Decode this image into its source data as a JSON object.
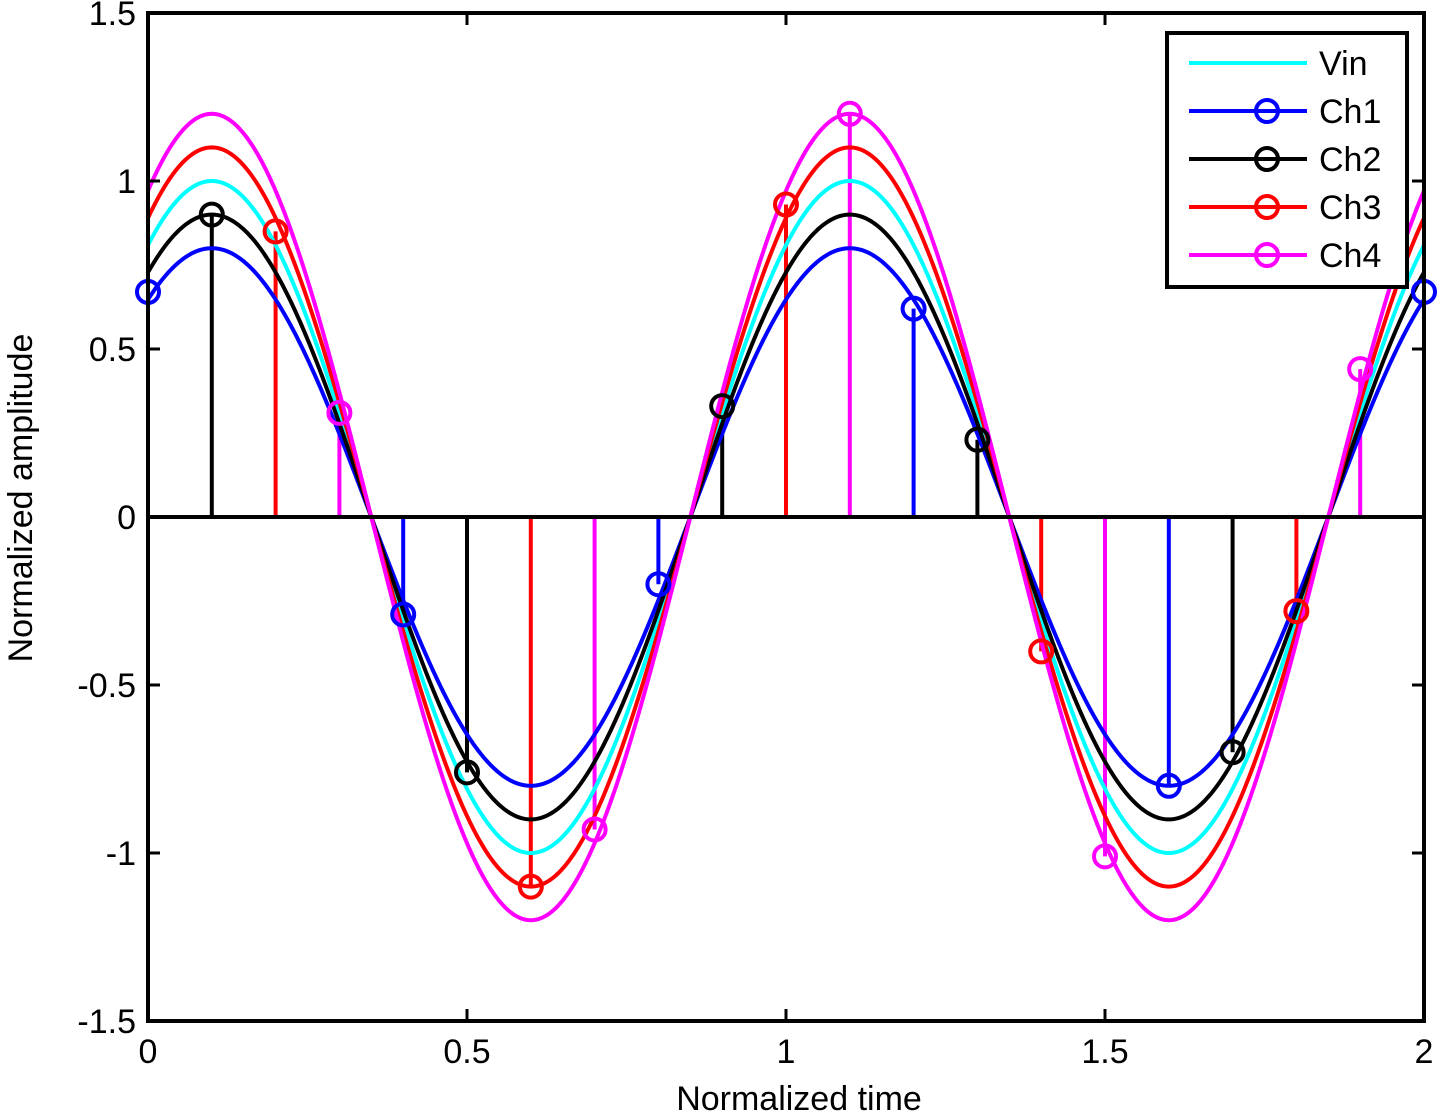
{
  "chart_data": {
    "type": "line",
    "xlabel": "Normalized time",
    "ylabel": "Normalized amplitude",
    "xlim": [
      0,
      2
    ],
    "ylim": [
      -1.5,
      1.5
    ],
    "x_ticks": [
      0,
      0.5,
      1,
      1.5,
      2
    ],
    "x_tick_labels": [
      "0",
      "0.5",
      "1",
      "1.5",
      "2"
    ],
    "y_ticks": [
      -1.5,
      -1,
      -0.5,
      0,
      0.5,
      1,
      1.5
    ],
    "y_tick_labels": [
      "-1.5",
      "-1",
      "-0.5",
      "0",
      "0.5",
      "1",
      "1.5"
    ],
    "legend_position": "top-right",
    "curve_period": 1,
    "curve_peak_time": 0.1,
    "series": [
      {
        "name": "Vin",
        "color": "#00ffff",
        "amplitude": 1.0,
        "samples": []
      },
      {
        "name": "Ch1",
        "color": "#0000ff",
        "amplitude": 0.8,
        "samples": [
          {
            "x": 0,
            "y": 0.67
          },
          {
            "x": 0.4,
            "y": -0.29
          },
          {
            "x": 0.8,
            "y": -0.2
          },
          {
            "x": 1.2,
            "y": 0.62
          },
          {
            "x": 1.6,
            "y": -0.8
          },
          {
            "x": 2,
            "y": 0.67
          }
        ]
      },
      {
        "name": "Ch2",
        "color": "#000000",
        "amplitude": 0.9,
        "samples": [
          {
            "x": 0.1,
            "y": 0.9
          },
          {
            "x": 0.5,
            "y": -0.76
          },
          {
            "x": 0.9,
            "y": 0.33
          },
          {
            "x": 1.3,
            "y": 0.23
          },
          {
            "x": 1.7,
            "y": -0.7
          }
        ]
      },
      {
        "name": "Ch3",
        "color": "#ff0000",
        "amplitude": 1.1,
        "samples": [
          {
            "x": 0.2,
            "y": 0.85
          },
          {
            "x": 0.6,
            "y": -1.1
          },
          {
            "x": 1.0,
            "y": 0.93
          },
          {
            "x": 1.4,
            "y": -0.4
          },
          {
            "x": 1.8,
            "y": -0.28
          }
        ]
      },
      {
        "name": "Ch4",
        "color": "#ff00ff",
        "amplitude": 1.2,
        "samples": [
          {
            "x": 0.3,
            "y": 0.31
          },
          {
            "x": 0.7,
            "y": -0.93
          },
          {
            "x": 1.1,
            "y": 1.2
          },
          {
            "x": 1.5,
            "y": -1.01
          },
          {
            "x": 1.9,
            "y": 0.44
          }
        ]
      }
    ]
  }
}
